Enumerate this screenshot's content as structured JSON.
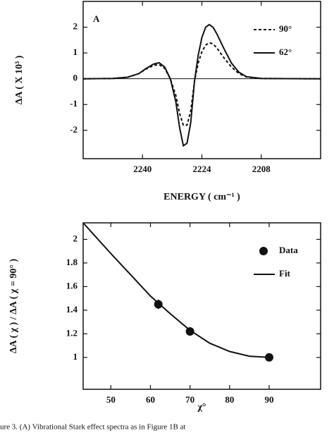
{
  "chart_data": [
    {
      "type": "line",
      "annotation": "A",
      "xlabel": "ENERGY ( cm⁻¹ )",
      "ylabel": "ΔA ( X 10³ )",
      "xlim": [
        2256,
        2192
      ],
      "xticks": [
        2240,
        2224,
        2208
      ],
      "ylim": [
        -3.1,
        3
      ],
      "yticks": [
        -2,
        -1,
        0,
        1,
        2
      ],
      "hline": 0,
      "legend": "upper right",
      "x": [
        2256,
        2248,
        2244,
        2241,
        2239,
        2237,
        2235.5,
        2234,
        2232.5,
        2231,
        2230,
        2229,
        2228,
        2227,
        2226,
        2225,
        2224,
        2223,
        2222,
        2221,
        2220,
        2218,
        2216,
        2214,
        2212,
        2208,
        2192
      ],
      "series": [
        {
          "name": "90°",
          "style": "dashed",
          "color": "#111111",
          "values": [
            0,
            0.01,
            0.06,
            0.2,
            0.38,
            0.52,
            0.55,
            0.4,
            0,
            -0.65,
            -1.35,
            -1.8,
            -1.8,
            -1.25,
            -0.1,
            0.6,
            1.05,
            1.3,
            1.4,
            1.35,
            1.2,
            0.8,
            0.45,
            0.2,
            0.07,
            0.01,
            0
          ]
        },
        {
          "name": "62°",
          "style": "solid",
          "color": "#111111",
          "values": [
            0,
            0.01,
            0.06,
            0.2,
            0.4,
            0.57,
            0.62,
            0.45,
            0,
            -0.9,
            -1.9,
            -2.6,
            -2.5,
            -1.7,
            -0.1,
            0.9,
            1.6,
            2.0,
            2.1,
            2.0,
            1.75,
            1.15,
            0.6,
            0.25,
            0.08,
            0.01,
            0
          ]
        }
      ]
    },
    {
      "type": "line",
      "xlabel": "χ°",
      "ylabel": "ΔA ( χ ) / ΔA ( χ = 90° )",
      "xlim": [
        43,
        103
      ],
      "xticks": [
        50,
        60,
        70,
        80,
        90
      ],
      "ylim": [
        0.73,
        2.14
      ],
      "yticks": [
        1,
        1.2,
        1.4,
        1.6,
        1.8,
        2
      ],
      "legend": "upper right",
      "series": [
        {
          "name": "Data",
          "style": "markers",
          "color": "#111111",
          "x": [
            62,
            70,
            90
          ],
          "values": [
            1.45,
            1.22,
            1.0
          ],
          "errors": [
            0.04,
            0.025,
            0.01
          ]
        },
        {
          "name": "Fit",
          "style": "solid",
          "color": "#111111",
          "x": [
            43,
            50,
            55,
            60,
            65,
            70,
            75,
            80,
            85,
            90
          ],
          "values": [
            2.14,
            1.88,
            1.7,
            1.52,
            1.37,
            1.23,
            1.12,
            1.05,
            1.01,
            1.0
          ]
        }
      ]
    }
  ],
  "caption": "ure 3.  (A) Vibrational Stark effect spectra as in Figure 1B at"
}
